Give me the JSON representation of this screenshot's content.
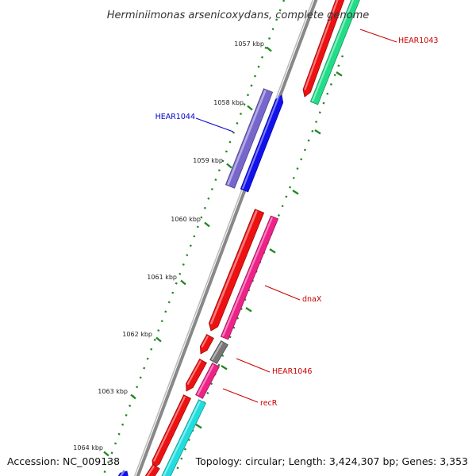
{
  "title": "Herminiimonas arsenicoxydans, complete genome",
  "tick_unit": "kbp",
  "ticks": [
    1057,
    1058,
    1059,
    1060,
    1061,
    1062,
    1063,
    1064
  ],
  "genes": [
    {
      "name": "HEAR1043",
      "color": "#cc0000"
    },
    {
      "name": "HEAR1044",
      "color": "#0000cc"
    },
    {
      "name": "dnaX",
      "color": "#cc0000"
    },
    {
      "name": "HEAR1046",
      "color": "#cc0000"
    },
    {
      "name": "recR",
      "color": "#cc0000"
    }
  ],
  "colors": {
    "cds_red": "#ee1111",
    "cds_blue": "#1111ee",
    "cds_purple": "#7766cc",
    "cds_green": "#22dd88",
    "cds_pink": "#ee2288",
    "cds_gray": "#777777",
    "cds_cyan": "#22dddd",
    "backbone": "#888888",
    "tick_green": "#228822"
  },
  "footer": {
    "accession": "Accession: NC_009138",
    "topology": "Topology: circular; Length: 3,424,307 bp; Genes: 3,353"
  }
}
